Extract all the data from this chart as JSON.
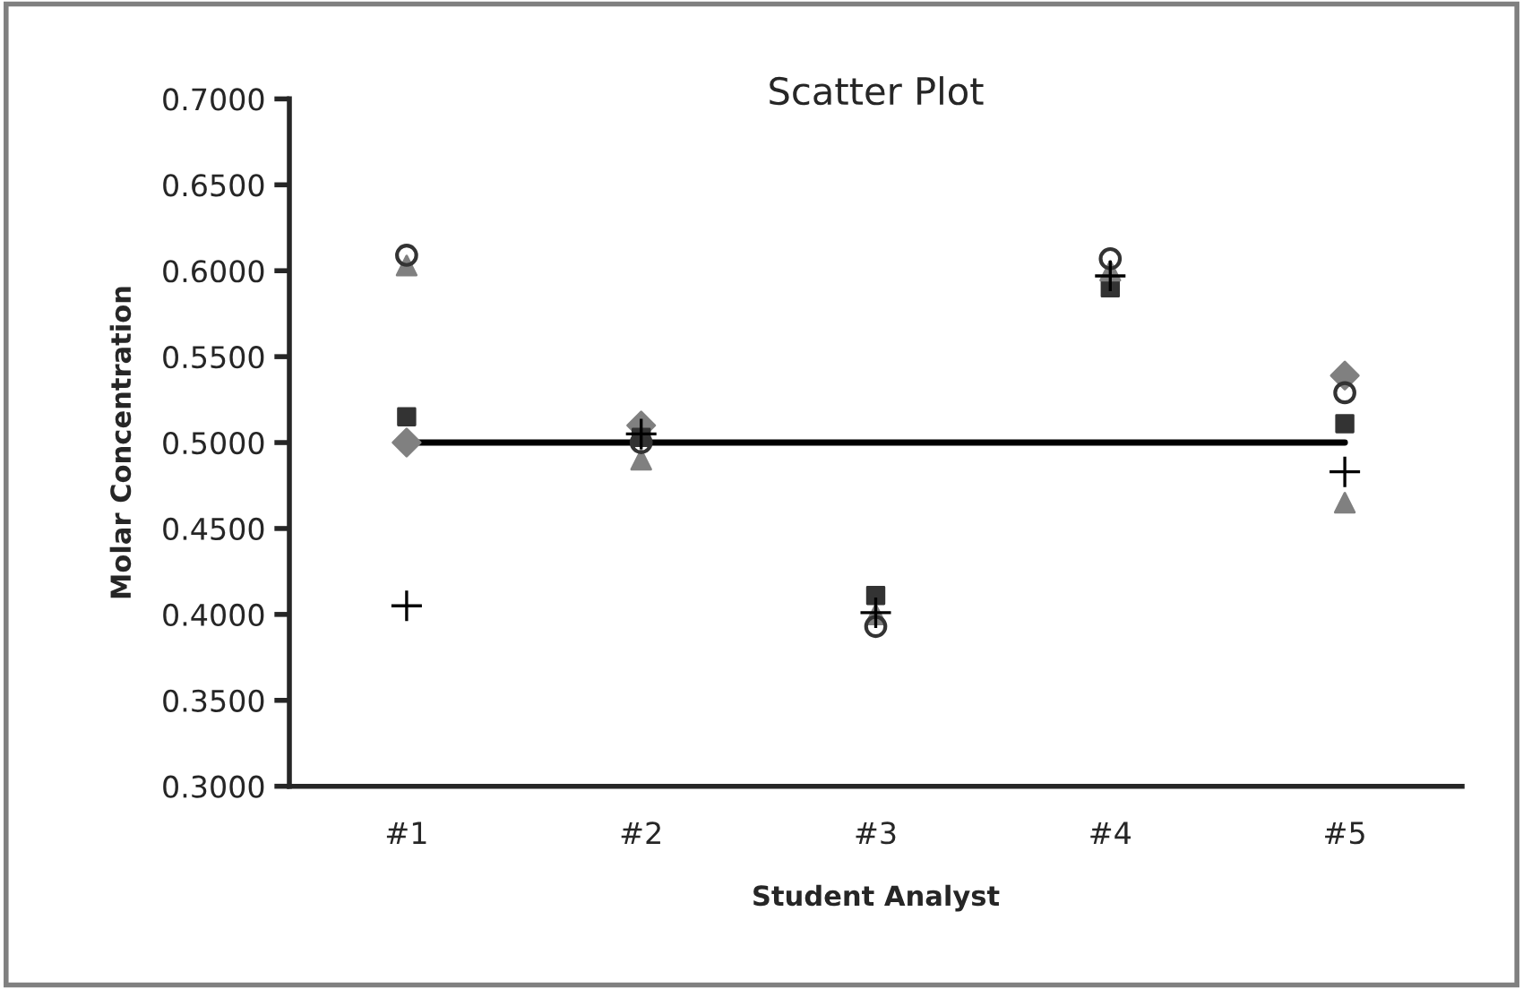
{
  "chart_data": {
    "type": "scatter",
    "title": "Scatter Plot",
    "xlabel": "Student Analyst",
    "ylabel": "Molar Concentration",
    "categories": [
      "#1",
      "#2",
      "#3",
      "#4",
      "#5"
    ],
    "ylim": [
      0.3,
      0.7
    ],
    "yticks": [
      {
        "value": 0.3,
        "label": "0.3000"
      },
      {
        "value": 0.35,
        "label": "0.3500"
      },
      {
        "value": 0.4,
        "label": "0.4000"
      },
      {
        "value": 0.45,
        "label": "0.4500"
      },
      {
        "value": 0.5,
        "label": "0.5000"
      },
      {
        "value": 0.55,
        "label": "0.5500"
      },
      {
        "value": 0.6,
        "label": "0.6000"
      },
      {
        "value": 0.65,
        "label": "0.6500"
      },
      {
        "value": 0.7,
        "label": "0.7000"
      }
    ],
    "grid": false,
    "legend": false,
    "series": [
      {
        "type": "line",
        "color": "#000000",
        "marker": "none",
        "line_style": "solid",
        "values": [
          0.5,
          0.5,
          0.5,
          0.5,
          0.5
        ]
      },
      {
        "color": "#808080",
        "marker": "diamond",
        "values": [
          0.5,
          0.51,
          null,
          null,
          0.539
        ]
      },
      {
        "color": "#333333",
        "marker": "square",
        "values": [
          0.515,
          0.503,
          0.411,
          0.59,
          0.511
        ]
      },
      {
        "color": "#808080",
        "marker": "triangle",
        "values": [
          0.603,
          0.49,
          0.4,
          0.6,
          0.465
        ]
      },
      {
        "color": "#333333",
        "marker": "circle",
        "values": [
          0.609,
          0.5,
          0.393,
          0.607,
          0.529
        ]
      },
      {
        "color": "#000000",
        "marker": "cross",
        "values": [
          0.405,
          0.505,
          0.401,
          0.597,
          0.483
        ]
      }
    ]
  }
}
